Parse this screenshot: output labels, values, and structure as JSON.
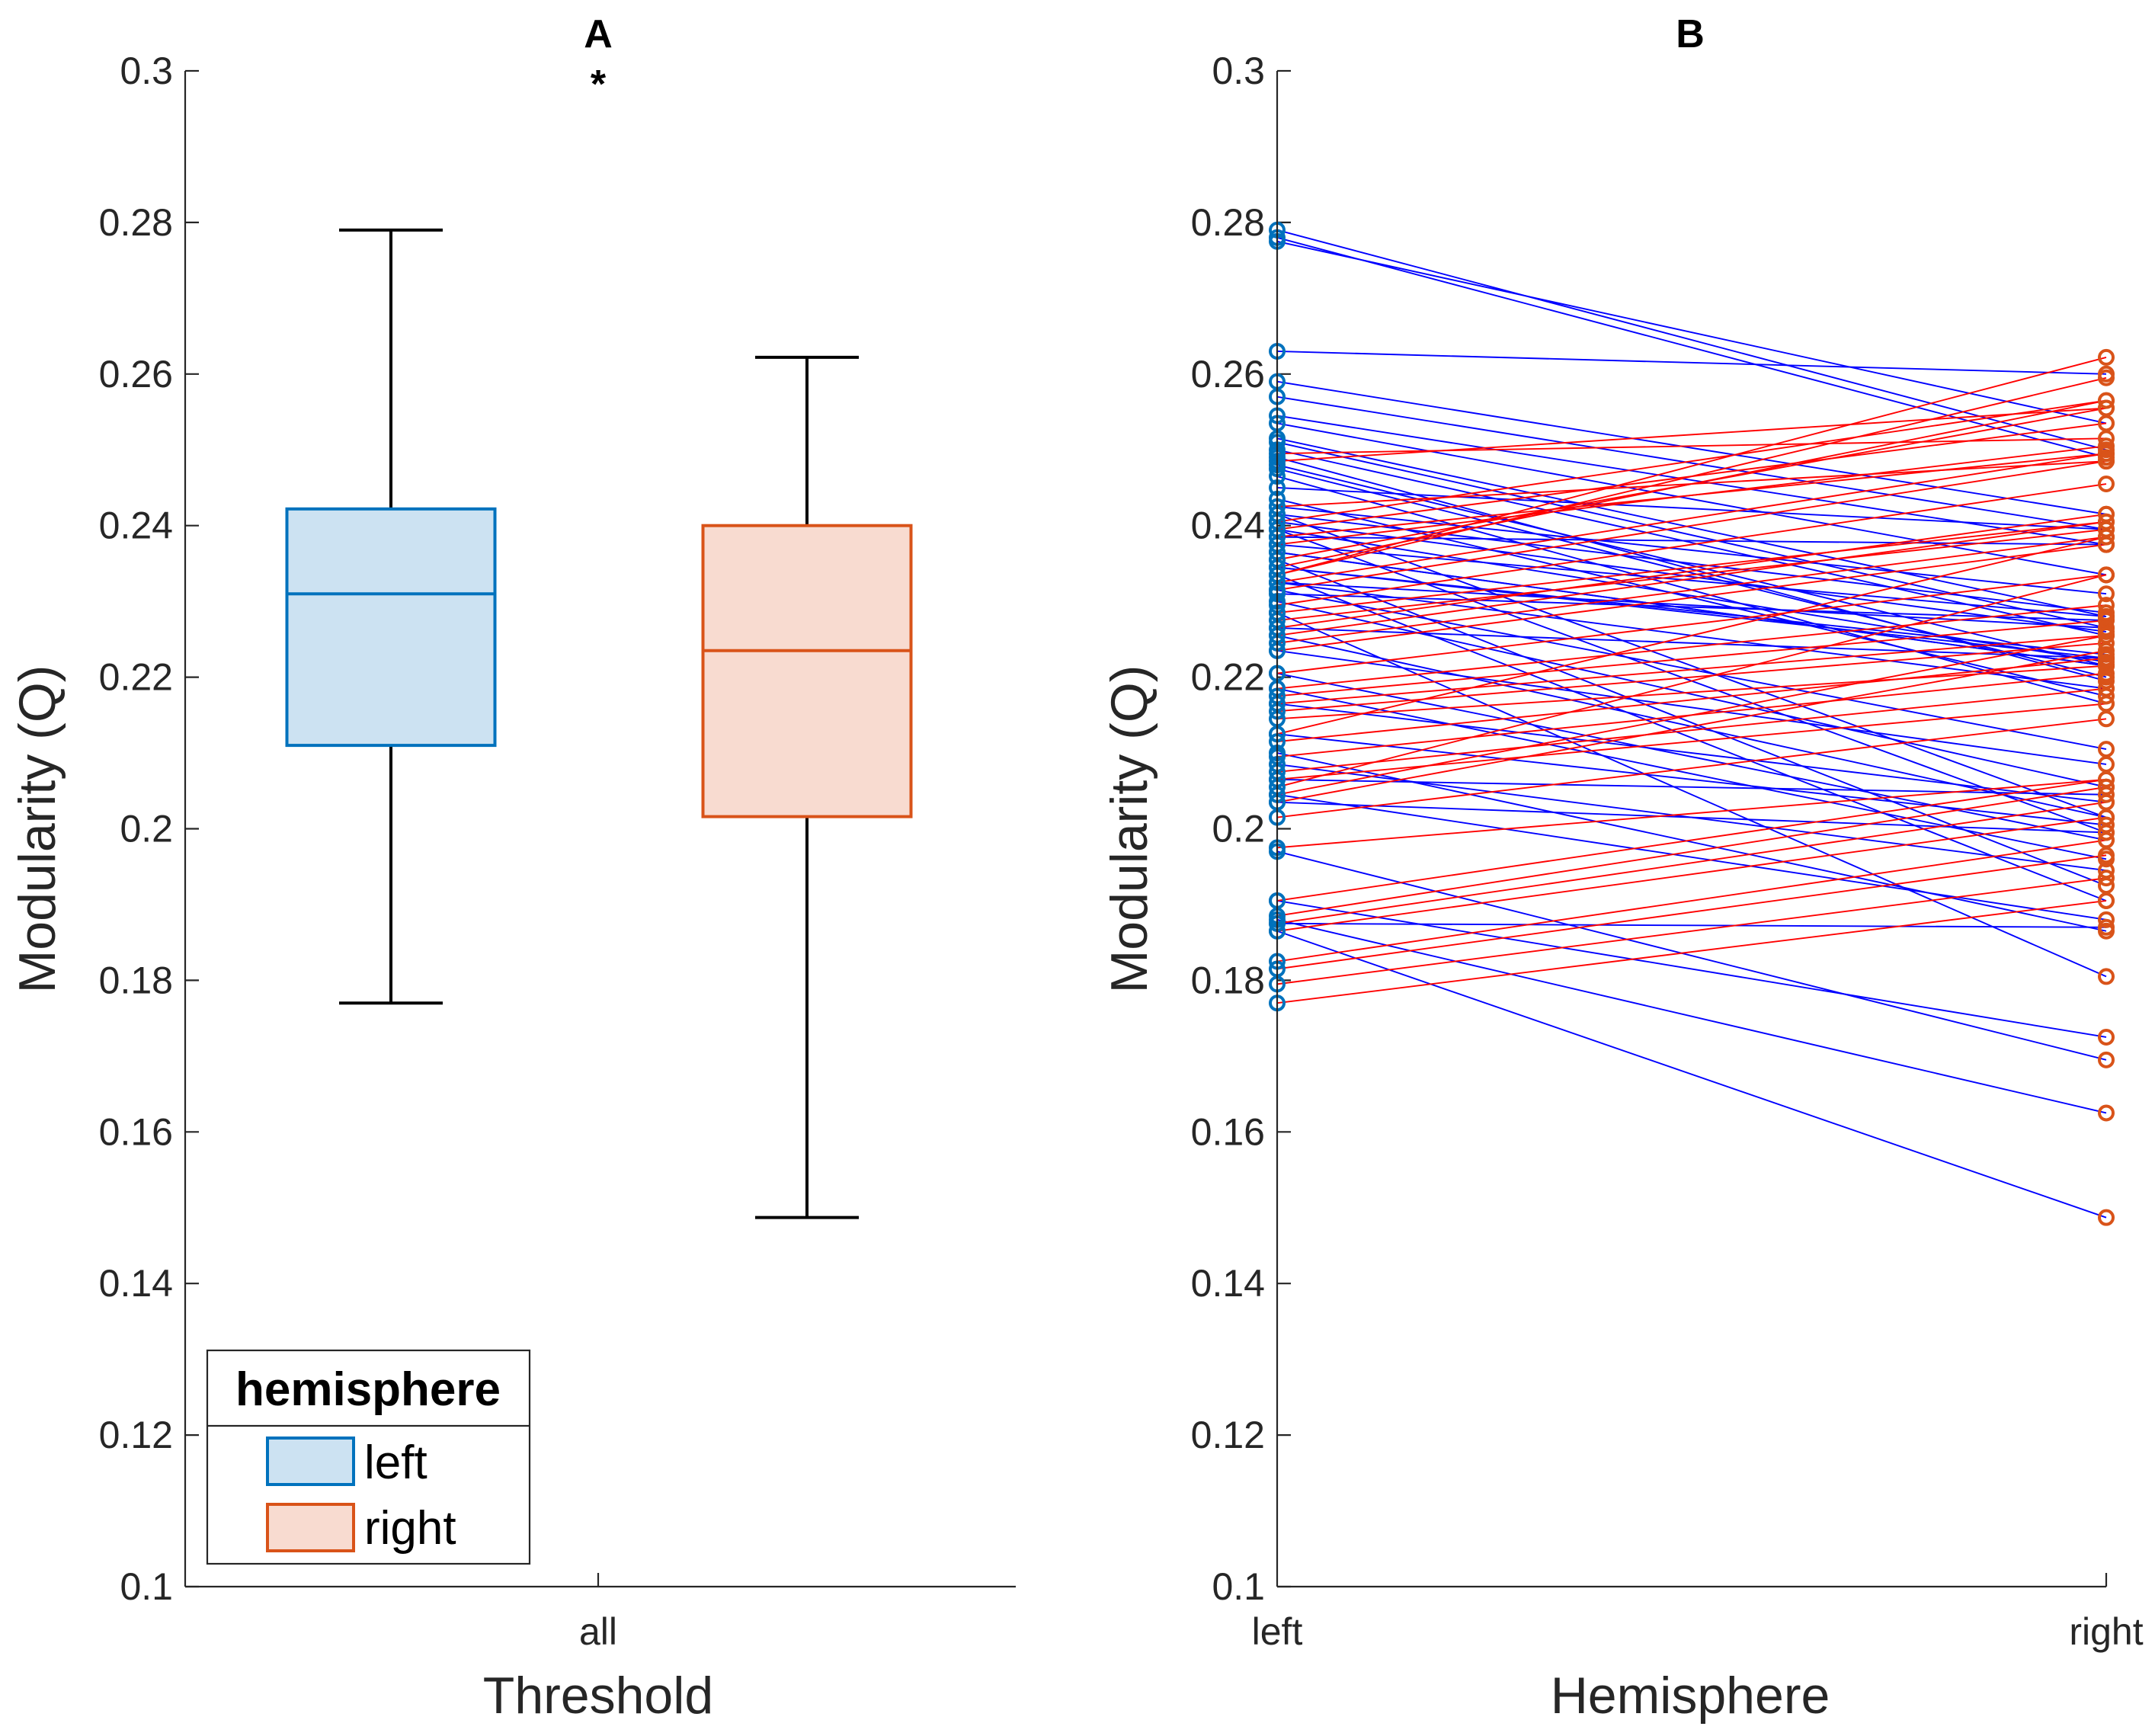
{
  "figure": {
    "colors": {
      "left_edge": "#0072BD",
      "left_fill": "#CCE2F2",
      "right_edge": "#D95319",
      "right_fill": "#F8DBD0",
      "line_left_to_right_decrease": "#0000FF",
      "line_increase": "#FF0000"
    }
  },
  "chart_data": [
    {
      "panel": "A",
      "type": "box",
      "title": "A",
      "xlabel": "Threshold",
      "ylabel": "Modularity (Q)",
      "ylim": [
        0.1,
        0.3
      ],
      "yticks": [
        "0.1",
        "0.12",
        "0.14",
        "0.16",
        "0.18",
        "0.2",
        "0.22",
        "0.24",
        "0.26",
        "0.28",
        "0.3"
      ],
      "categories": [
        "all"
      ],
      "significance_marker": "*",
      "legend": {
        "title": "hemisphere",
        "location": "bottom-left",
        "entries": [
          "left",
          "right"
        ]
      },
      "series": [
        {
          "name": "left",
          "whisker_low": 0.177,
          "q1": 0.211,
          "median": 0.231,
          "q3": 0.2422,
          "whisker_high": 0.279
        },
        {
          "name": "right",
          "whisker_low": 0.1487,
          "q1": 0.2016,
          "median": 0.2235,
          "q3": 0.24,
          "whisker_high": 0.2622
        }
      ]
    },
    {
      "panel": "B",
      "type": "line",
      "title": "B",
      "xlabel": "Hemisphere",
      "ylabel": "Modularity (Q)",
      "ylim": [
        0.1,
        0.3
      ],
      "yticks": [
        "0.1",
        "0.12",
        "0.14",
        "0.16",
        "0.18",
        "0.2",
        "0.22",
        "0.24",
        "0.26",
        "0.28",
        "0.3"
      ],
      "categories": [
        "left",
        "right"
      ],
      "pairs": [
        [
          0.279,
          0.25
        ],
        [
          0.278,
          0.249
        ],
        [
          0.2775,
          0.2535
        ],
        [
          0.263,
          0.26
        ],
        [
          0.259,
          0.2415
        ],
        [
          0.257,
          0.2395
        ],
        [
          0.2545,
          0.2375
        ],
        [
          0.2535,
          0.2335
        ],
        [
          0.2515,
          0.228
        ],
        [
          0.25,
          0.2255
        ],
        [
          0.249,
          0.2195
        ],
        [
          0.248,
          0.2215
        ],
        [
          0.2465,
          0.2165
        ],
        [
          0.245,
          0.2395
        ],
        [
          0.2425,
          0.231
        ],
        [
          0.2415,
          0.2015
        ],
        [
          0.2405,
          0.226
        ],
        [
          0.2395,
          0.1995
        ],
        [
          0.2385,
          0.2375
        ],
        [
          0.2375,
          0.228
        ],
        [
          0.2365,
          0.2215
        ],
        [
          0.2355,
          0.1925
        ],
        [
          0.2345,
          0.2225
        ],
        [
          0.2335,
          0.1905
        ],
        [
          0.2325,
          0.2265
        ],
        [
          0.2315,
          0.2105
        ],
        [
          0.23,
          0.2055
        ],
        [
          0.2285,
          0.1805
        ],
        [
          0.2265,
          0.2225
        ],
        [
          0.2255,
          0.2015
        ],
        [
          0.2235,
          0.2085
        ],
        [
          0.2205,
          0.1985
        ],
        [
          0.2185,
          0.196
        ],
        [
          0.2165,
          0.2035
        ],
        [
          0.2125,
          0.2005
        ],
        [
          0.21,
          0.1865
        ],
        [
          0.2085,
          0.1945
        ],
        [
          0.2065,
          0.2045
        ],
        [
          0.2045,
          0.188
        ],
        [
          0.2035,
          0.1995
        ],
        [
          0.197,
          0.1695
        ],
        [
          0.1905,
          0.1725
        ],
        [
          0.188,
          0.1625
        ],
        [
          0.1865,
          0.1487
        ],
        [
          0.251,
          0.2265
        ],
        [
          0.2475,
          0.22
        ],
        [
          0.2435,
          0.2175
        ],
        [
          0.2415,
          0.2285
        ],
        [
          0.2395,
          0.222
        ],
        [
          0.2365,
          0.2215
        ],
        [
          0.2345,
          0.223
        ],
        [
          0.2325,
          0.2185
        ],
        [
          0.231,
          0.2275
        ],
        [
          0.1875,
          0.187
        ],
        [
          0.2495,
          0.2515
        ],
        [
          0.2485,
          0.2555
        ],
        [
          0.2425,
          0.2485
        ],
        [
          0.2405,
          0.2565
        ],
        [
          0.2395,
          0.2535
        ],
        [
          0.2385,
          0.2495
        ],
        [
          0.2375,
          0.2505
        ],
        [
          0.2355,
          0.2555
        ],
        [
          0.2345,
          0.2565
        ],
        [
          0.2335,
          0.2595
        ],
        [
          0.2335,
          0.2622
        ],
        [
          0.2325,
          0.2495
        ],
        [
          0.2315,
          0.2485
        ],
        [
          0.2295,
          0.2455
        ],
        [
          0.2285,
          0.2405
        ],
        [
          0.2275,
          0.2395
        ],
        [
          0.2265,
          0.2415
        ],
        [
          0.2255,
          0.2405
        ],
        [
          0.2245,
          0.2385
        ],
        [
          0.2235,
          0.2375
        ],
        [
          0.2205,
          0.2335
        ],
        [
          0.2185,
          0.2295
        ],
        [
          0.2175,
          0.2275
        ],
        [
          0.2165,
          0.2255
        ],
        [
          0.2155,
          0.2245
        ],
        [
          0.2145,
          0.2215
        ],
        [
          0.2125,
          0.2385
        ],
        [
          0.2115,
          0.2225
        ],
        [
          0.2095,
          0.2205
        ],
        [
          0.2075,
          0.2185
        ],
        [
          0.2065,
          0.2165
        ],
        [
          0.2055,
          0.2335
        ],
        [
          0.2045,
          0.2255
        ],
        [
          0.2035,
          0.2235
        ],
        [
          0.2015,
          0.2145
        ],
        [
          0.1975,
          0.2065
        ],
        [
          0.1905,
          0.2065
        ],
        [
          0.1885,
          0.2055
        ],
        [
          0.1875,
          0.2035
        ],
        [
          0.1865,
          0.2015
        ],
        [
          0.1825,
          0.1985
        ],
        [
          0.1815,
          0.1965
        ],
        [
          0.1795,
          0.1935
        ],
        [
          0.177,
          0.1905
        ]
      ]
    }
  ]
}
